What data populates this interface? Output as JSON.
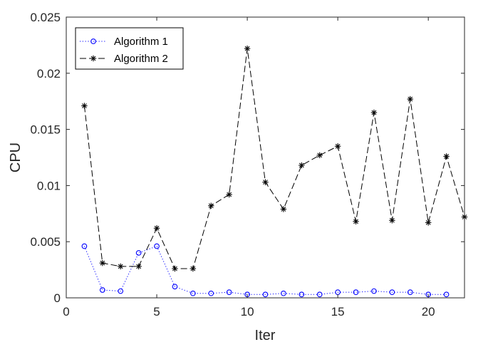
{
  "chart_data": {
    "type": "line",
    "title": "",
    "xlabel": "Iter",
    "ylabel": "CPU",
    "xlim": [
      0,
      22
    ],
    "ylim": [
      0,
      0.025
    ],
    "xticks": [
      0,
      5,
      10,
      15,
      20
    ],
    "yticks": [
      0,
      0.005,
      0.01,
      0.015,
      0.02,
      0.025
    ],
    "xtick_labels": [
      "0",
      "5",
      "10",
      "15",
      "20"
    ],
    "ytick_labels": [
      "0",
      "0.005",
      "0.01",
      "0.015",
      "0.02",
      "0.025"
    ],
    "grid": false,
    "legend_position": "top-left",
    "series": [
      {
        "name": "Algorithm 1",
        "color": "#0000ff",
        "line_style": "dotted",
        "marker": "circle",
        "x": [
          1,
          2,
          3,
          4,
          5,
          6,
          7,
          8,
          9,
          10,
          11,
          12,
          13,
          14,
          15,
          16,
          17,
          18,
          19,
          20,
          21
        ],
        "y": [
          0.0046,
          0.0007,
          0.0006,
          0.004,
          0.0046,
          0.001,
          0.0004,
          0.0004,
          0.0005,
          0.0003,
          0.0003,
          0.0004,
          0.0003,
          0.0003,
          0.0005,
          0.0005,
          0.0006,
          0.0005,
          0.0005,
          0.0003,
          0.0003
        ]
      },
      {
        "name": "Algorithm 2",
        "color": "#000000",
        "line_style": "dashed",
        "marker": "asterisk",
        "x": [
          1,
          2,
          3,
          4,
          5,
          6,
          7,
          8,
          9,
          10,
          11,
          12,
          13,
          14,
          15,
          16,
          17,
          18,
          19,
          20,
          21,
          22
        ],
        "y": [
          0.0171,
          0.0031,
          0.0028,
          0.0028,
          0.0062,
          0.0026,
          0.0026,
          0.0082,
          0.0092,
          0.0222,
          0.0103,
          0.0079,
          0.0118,
          0.0127,
          0.0135,
          0.0068,
          0.0165,
          0.0069,
          0.0177,
          0.0067,
          0.0126,
          0.0072
        ]
      }
    ]
  }
}
